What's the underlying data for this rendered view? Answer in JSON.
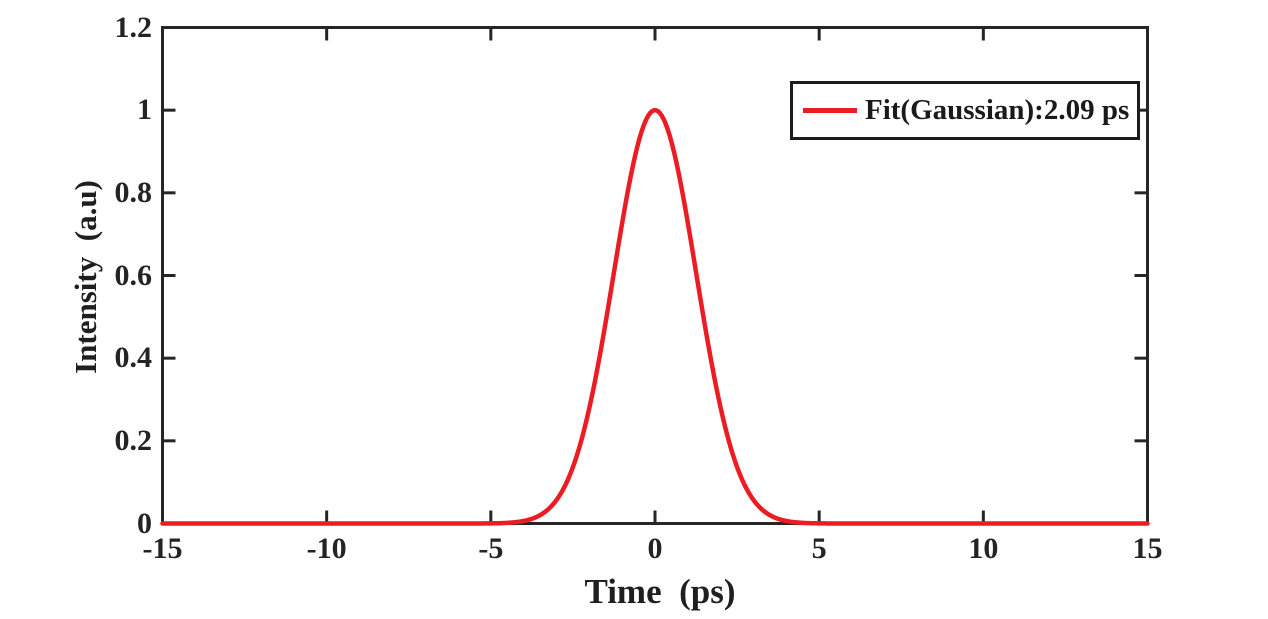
{
  "figure": {
    "background": "#ffffff"
  },
  "colors": {
    "axis": "#262626",
    "tick_text": "#242424",
    "label_text": "#1f1f1f",
    "curve_red": "#ec1c24",
    "legend_border": "#1c1c1c"
  },
  "chart_data": {
    "type": "line",
    "title": "",
    "xlabel": "Time  (ps)",
    "ylabel": "Intensity  (a.u)",
    "xlim": [
      -15,
      15
    ],
    "ylim": [
      0,
      1.2
    ],
    "x_ticks": [
      -15,
      -10,
      -5,
      0,
      5,
      10,
      15
    ],
    "x_tick_labels": [
      "-15",
      "-10",
      "-5",
      "0",
      "5",
      "10",
      "15"
    ],
    "y_ticks": [
      0,
      0.2,
      0.4,
      0.6,
      0.8,
      1,
      1.2
    ],
    "y_tick_labels": [
      "0",
      "0.2",
      "0.4",
      "0.6",
      "0.8",
      "1",
      "1.2"
    ],
    "grid": false,
    "box": true,
    "ticks_direction": "in",
    "legend": {
      "position": "top-right",
      "entries": [
        {
          "label": "Fit(Gaussian):2.09 ps",
          "color": "#ec1c24"
        }
      ]
    },
    "series": [
      {
        "name": "Fit(Gaussian):2.09 ps",
        "type": "line",
        "color": "#ec1c24",
        "line_width": 4.5,
        "model": "gaussian",
        "params": {
          "amplitude": 1.0,
          "center_ps": 0,
          "fwhm_ps": 2.95
        },
        "points": [
          [
            -15,
            0
          ],
          [
            -6,
            0.0001
          ],
          [
            -5,
            0.0003
          ],
          [
            -4.5,
            0.0016
          ],
          [
            -4,
            0.0061
          ],
          [
            -3.5,
            0.0202
          ],
          [
            -3,
            0.0568
          ],
          [
            -2.5,
            0.1365
          ],
          [
            -2,
            0.2796
          ],
          [
            -1.5,
            0.4883
          ],
          [
            -1,
            0.7272
          ],
          [
            -0.5,
            0.9234
          ],
          [
            0,
            1.0
          ],
          [
            0.5,
            0.9234
          ],
          [
            1,
            0.7272
          ],
          [
            1.5,
            0.4883
          ],
          [
            2,
            0.2796
          ],
          [
            2.5,
            0.1365
          ],
          [
            3,
            0.0568
          ],
          [
            3.5,
            0.0202
          ],
          [
            4,
            0.0061
          ],
          [
            4.5,
            0.0016
          ],
          [
            5,
            0.0003
          ],
          [
            6,
            0.0001
          ],
          [
            15,
            0
          ]
        ]
      }
    ]
  }
}
